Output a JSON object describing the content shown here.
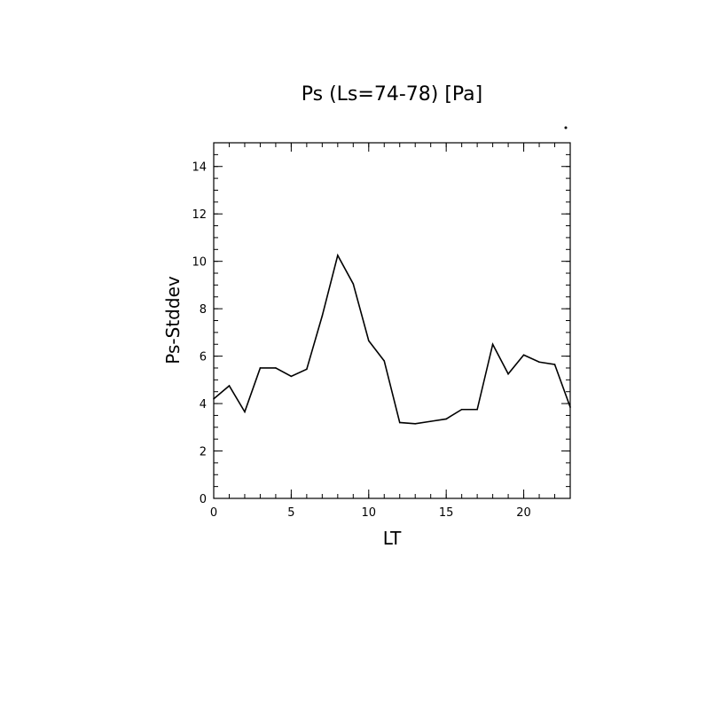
{
  "chart_data": {
    "type": "line",
    "title": "Ps (Ls=74-78) [Pa]",
    "xlabel": "LT",
    "ylabel": "Ps-Stddev",
    "xlim": [
      0,
      23
    ],
    "ylim": [
      0,
      15
    ],
    "x_ticks": [
      0,
      5,
      10,
      15,
      20
    ],
    "x_ticks_labels": [
      "0",
      "5",
      "10",
      "15",
      "20"
    ],
    "x_minor_step": 1,
    "y_ticks": [
      0,
      2,
      4,
      6,
      8,
      10,
      12,
      14
    ],
    "y_ticks_labels": [
      "0",
      "2",
      "4",
      "6",
      "8",
      "10",
      "12",
      "14"
    ],
    "y_minor_step": 0.5,
    "grid": false,
    "legend": "none",
    "x": [
      0,
      1,
      2,
      3,
      4,
      5,
      6,
      7,
      8,
      9,
      10,
      11,
      12,
      13,
      14,
      15,
      16,
      17,
      18,
      19,
      20,
      21,
      22,
      23
    ],
    "series": [
      {
        "values": [
          4.2,
          4.75,
          3.65,
          5.5,
          5.5,
          5.15,
          5.45,
          7.7,
          10.25,
          9.05,
          6.65,
          5.8,
          3.2,
          3.15,
          3.25,
          3.35,
          3.75,
          3.75,
          6.5,
          5.25,
          6.05,
          5.75,
          5.65,
          3.85
        ],
        "color": "#000000"
      }
    ]
  }
}
